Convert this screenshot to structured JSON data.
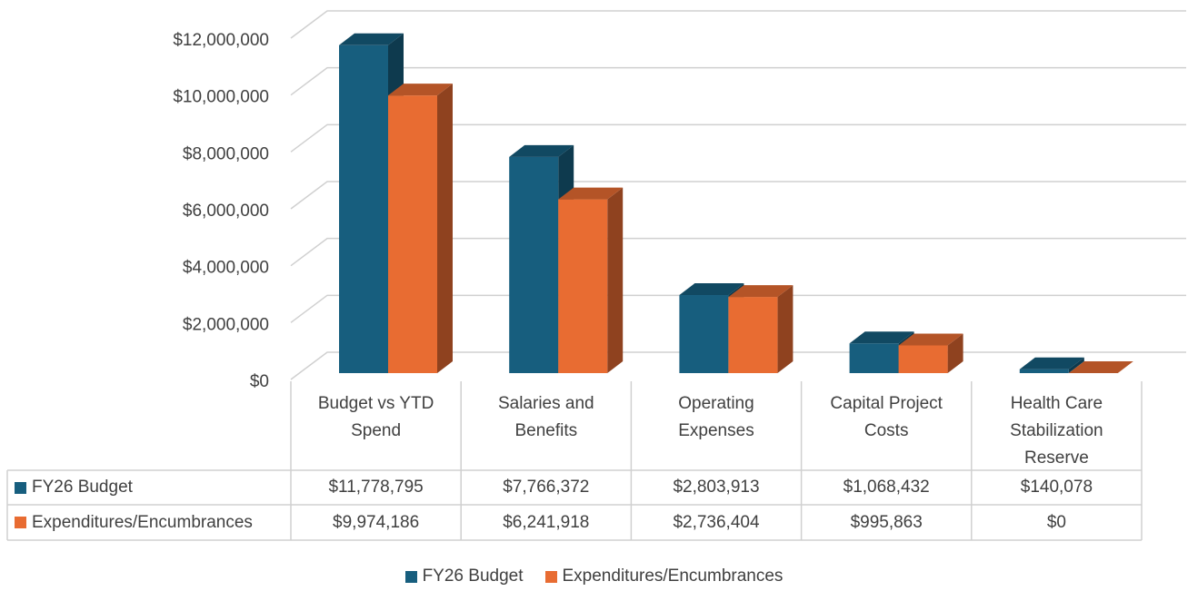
{
  "chart_data": {
    "type": "bar3d",
    "categories": [
      "Budget vs YTD Spend",
      "Salaries and Benefits",
      "Operating Expenses",
      "Capital Project Costs",
      "Health Care Stabilization Reserve"
    ],
    "series": [
      {
        "name": "FY26 Budget",
        "color": "#175e7e",
        "values": [
          11778795,
          7766372,
          2803913,
          1068432,
          140078
        ],
        "value_labels": [
          "$11,778,795",
          "$7,766,372",
          "$2,803,913",
          "$1,068,432",
          "$140,078"
        ]
      },
      {
        "name": "Expenditures/Encumbrances",
        "color": "#e86c32",
        "values": [
          9974186,
          6241918,
          2736404,
          995863,
          0
        ],
        "value_labels": [
          "$9,974,186",
          "$6,241,918",
          "$2,736,404",
          "$995,863",
          "$0"
        ]
      }
    ],
    "ylim": [
      0,
      12000000
    ],
    "yticks": [
      {
        "value": 0,
        "label": "$0"
      },
      {
        "value": 2000000,
        "label": "$2,000,000"
      },
      {
        "value": 4000000,
        "label": "$4,000,000"
      },
      {
        "value": 6000000,
        "label": "$6,000,000"
      },
      {
        "value": 8000000,
        "label": "$8,000,000"
      },
      {
        "value": 10000000,
        "label": "$10,000,000"
      },
      {
        "value": 12000000,
        "label": "$12,000,000"
      }
    ],
    "grid": true,
    "data_table": true,
    "legend": "bottom"
  }
}
